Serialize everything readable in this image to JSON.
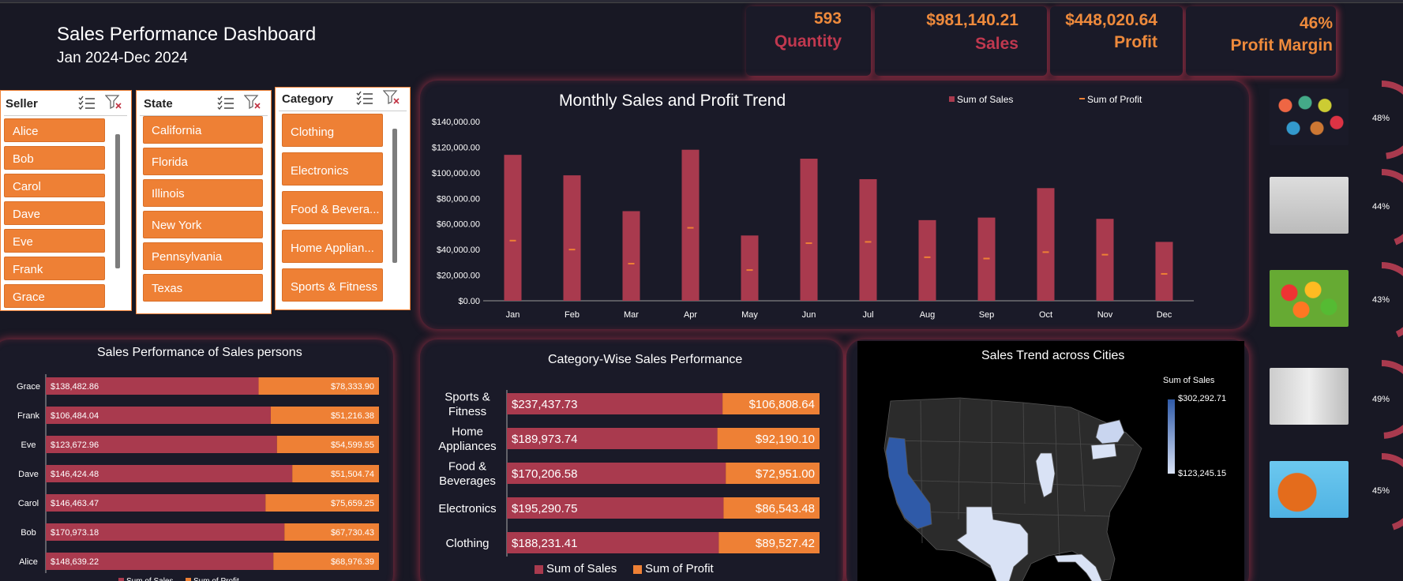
{
  "header": {
    "title": "Sales Performance Dashboard",
    "subtitle": "Jan 2024-Dec 2024"
  },
  "kpis": {
    "quantity": {
      "value": "593",
      "label": "Quantity"
    },
    "sales": {
      "value": "$981,140.21",
      "label": "Sales"
    },
    "profit": {
      "value": "$448,020.64",
      "label": "Profit"
    },
    "margin": {
      "value": "46%",
      "label": "Profit Margin"
    }
  },
  "colors": {
    "sales": "#a93a4e",
    "profit": "#ee8035",
    "kpi_red": "#c0384f",
    "kpi_orange": "#ee8a3c",
    "map_high": "#2f5aa8",
    "map_low": "#d9e2f5"
  },
  "slicers": {
    "seller": {
      "title": "Seller",
      "items": [
        "Alice",
        "Bob",
        "Carol",
        "Dave",
        "Eve",
        "Frank",
        "Grace"
      ]
    },
    "state": {
      "title": "State",
      "items": [
        "California",
        "Florida",
        "Illinois",
        "New York",
        "Pennsylvania",
        "Texas"
      ]
    },
    "category": {
      "title": "Category",
      "items": [
        "Clothing",
        "Electronics",
        "Food & Bevera...",
        "Home Applian...",
        "Sports & Fitness"
      ]
    }
  },
  "gauges": [
    {
      "value": "48%",
      "fraction": 0.48,
      "icon": "clothing-image"
    },
    {
      "value": "44%",
      "fraction": 0.44,
      "icon": "electronics-image"
    },
    {
      "value": "43%",
      "fraction": 0.43,
      "icon": "fruits-image"
    },
    {
      "value": "49%",
      "fraction": 0.49,
      "icon": "appliances-image"
    },
    {
      "value": "45%",
      "fraction": 0.45,
      "icon": "sports-image"
    }
  ],
  "chart_data": [
    {
      "type": "bar",
      "title": "Monthly Sales and Profit Trend",
      "categories": [
        "Jan",
        "Feb",
        "Mar",
        "Apr",
        "May",
        "Jun",
        "Jul",
        "Aug",
        "Sep",
        "Oct",
        "Nov",
        "Dec"
      ],
      "series": [
        {
          "name": "Sum of Sales",
          "values": [
            114000,
            98000,
            70000,
            118000,
            51000,
            111000,
            95000,
            63000,
            65000,
            88000,
            64000,
            46000
          ]
        },
        {
          "name": "Sum of Profit",
          "values": [
            47000,
            40000,
            29000,
            57000,
            24000,
            45000,
            46000,
            34000,
            33000,
            38000,
            36000,
            21000
          ]
        }
      ],
      "yticks": [
        "$0.00",
        "$20,000.00",
        "$40,000.00",
        "$60,000.00",
        "$80,000.00",
        "$100,000.00",
        "$120,000.00",
        "$140,000.00"
      ],
      "ylim": [
        0,
        140000
      ],
      "legend": "top-right"
    },
    {
      "type": "bar",
      "title": "Sales Performance of Sales persons",
      "categories": [
        "Grace",
        "Frank",
        "Eve",
        "Dave",
        "Carol",
        "Bob",
        "Alice"
      ],
      "series": [
        {
          "name": "Sum of Sales",
          "values": [
            138482.86,
            106484.04,
            123672.96,
            146424.48,
            146463.47,
            170973.18,
            148639.22
          ],
          "labels": [
            "$138,482.86",
            "$106,484.04",
            "$123,672.96",
            "$146,424.48",
            "$146,463.47",
            "$170,973.18",
            "$148,639.22"
          ]
        },
        {
          "name": "Sum of Profit",
          "values": [
            78333.9,
            51216.38,
            54599.55,
            51504.74,
            75659.25,
            67730.43,
            68976.39
          ],
          "labels": [
            "$78,333.90",
            "$51,216.38",
            "$54,599.55",
            "$51,504.74",
            "$75,659.25",
            "$67,730.43",
            "$68,976.39"
          ]
        }
      ],
      "orientation": "horizontal",
      "stacked": "100%",
      "legend": "bottom"
    },
    {
      "type": "bar",
      "title": "Category-Wise Sales Performance",
      "categories": [
        "Sports & Fitness",
        "Home Appliances",
        "Food & Beverages",
        "Electronics",
        "Clothing"
      ],
      "category_lines": [
        [
          "Sports &",
          "Fitness"
        ],
        [
          "Home",
          "Appliances"
        ],
        [
          "Food &",
          "Beverages"
        ],
        [
          "Electronics"
        ],
        [
          "Clothing"
        ]
      ],
      "series": [
        {
          "name": "Sum of Sales",
          "values": [
            237437.73,
            189973.74,
            170206.58,
            195290.75,
            188231.41
          ],
          "labels": [
            "$237,437.73",
            "$189,973.74",
            "$170,206.58",
            "$195,290.75",
            "$188,231.41"
          ]
        },
        {
          "name": "Sum of Profit",
          "values": [
            106808.64,
            92190.1,
            72951.0,
            86543.48,
            89527.42
          ],
          "labels": [
            "$106,808.64",
            "$92,190.10",
            "$72,951.00",
            "$86,543.48",
            "$89,527.42"
          ]
        }
      ],
      "orientation": "horizontal",
      "stacked": "100%",
      "legend": "bottom"
    },
    {
      "type": "heatmap",
      "title": "Sales Trend across Cities",
      "legend_title": "Sum of Sales",
      "legend_max": "$302,292.71",
      "legend_min": "$123,245.15",
      "states": [
        "California",
        "Texas",
        "Florida",
        "Illinois",
        "New York",
        "Pennsylvania"
      ]
    }
  ]
}
